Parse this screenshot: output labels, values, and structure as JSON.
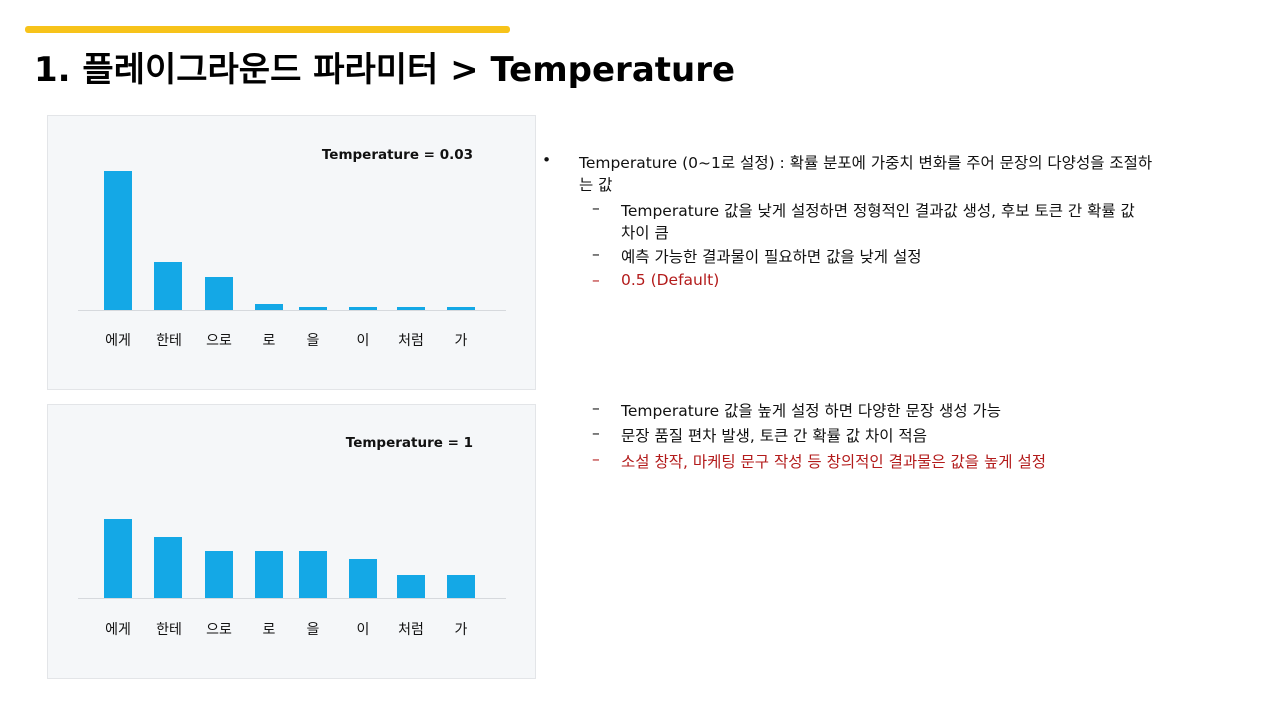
{
  "header": {
    "title": "1. 플레이그라운드 파라미터 > Temperature",
    "accent_color": "#f7c31a"
  },
  "charts": [
    {
      "title": "Temperature = 0.03",
      "labels": [
        "에게",
        "한테",
        "으로",
        "로",
        "을",
        "이",
        "처럼",
        "가"
      ]
    },
    {
      "title": "Temperature = 1",
      "labels": [
        "에게",
        "한테",
        "으로",
        "로",
        "을",
        "이",
        "처럼",
        "가"
      ]
    }
  ],
  "chart_data": [
    {
      "type": "bar",
      "title": "Temperature = 0.03",
      "categories": [
        "에게",
        "한테",
        "으로",
        "로",
        "을",
        "이",
        "처럼",
        "가"
      ],
      "values": [
        139,
        48,
        33,
        6,
        3,
        3,
        3,
        3
      ],
      "xlabel": "",
      "ylabel": "",
      "grid": false,
      "bar_color": "#14a8e6"
    },
    {
      "type": "bar",
      "title": "Temperature = 1",
      "categories": [
        "에게",
        "한테",
        "으로",
        "로",
        "을",
        "이",
        "처럼",
        "가"
      ],
      "values": [
        79,
        61,
        47,
        47,
        47,
        39,
        23,
        23
      ],
      "xlabel": "",
      "ylabel": "",
      "grid": false,
      "bar_color": "#14a8e6"
    }
  ],
  "content": {
    "bullet_main_line1": "Temperature (0~1로 설정) : 확률 분포에 가중치 변화를 주어 문장의 다양성을 조절하",
    "bullet_main_line2": "는 값",
    "low_items": [
      {
        "line1": "Temperature 값을 낮게 설정하면 정형적인 결과값 생성, 후보 토큰 간 확률 값",
        "line2": "차이 큼"
      },
      {
        "line1": "예측 가능한 결과물이 필요하면 값을 낮게 설정"
      },
      {
        "line1": "0.5 (Default)"
      }
    ],
    "high_items": [
      {
        "line1": "Temperature 값을 높게 설정 하면 다양한 문장 생성 가능"
      },
      {
        "line1": "문장 품질 편차 발생, 토큰 간 확률 값 차이 적음"
      },
      {
        "line1": "소설 창작, 마케팅 문구 작성 등 창의적인 결과물은 값을 높게 설정"
      }
    ],
    "bullet_glyph": "•",
    "dash_glyph": "–",
    "highlight_color": "#b31b1b"
  }
}
